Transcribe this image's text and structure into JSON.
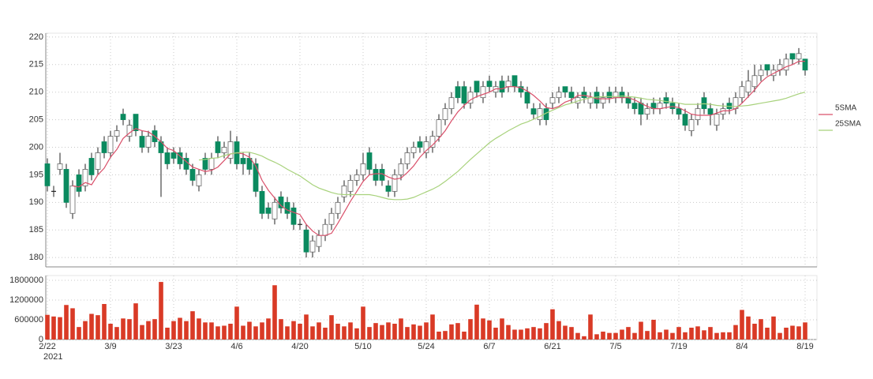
{
  "chart_data": {
    "type": "candlestick",
    "year": "2021",
    "categories": [
      "2/22",
      null,
      null,
      null,
      null,
      null,
      null,
      null,
      null,
      null,
      "3/9",
      null,
      null,
      null,
      null,
      null,
      null,
      null,
      null,
      null,
      "3/23",
      null,
      null,
      null,
      null,
      null,
      null,
      null,
      null,
      null,
      "4/6",
      null,
      null,
      null,
      null,
      null,
      null,
      null,
      null,
      null,
      "4/20",
      null,
      null,
      null,
      null,
      null,
      null,
      null,
      null,
      null,
      "5/10",
      null,
      null,
      null,
      null,
      null,
      null,
      null,
      null,
      null,
      "5/24",
      null,
      null,
      null,
      null,
      null,
      null,
      null,
      null,
      null,
      "6/7",
      null,
      null,
      null,
      null,
      null,
      null,
      null,
      null,
      null,
      "6/21",
      null,
      null,
      null,
      null,
      null,
      null,
      null,
      null,
      null,
      "7/5",
      null,
      null,
      null,
      null,
      null,
      null,
      null,
      null,
      null,
      "7/19",
      null,
      null,
      null,
      null,
      null,
      null,
      null,
      null,
      null,
      "8/4",
      null,
      null,
      null,
      null,
      null,
      null,
      null,
      null,
      null,
      "8/19"
    ],
    "open": [
      197,
      192,
      196,
      196,
      188,
      195,
      193,
      198,
      196,
      201,
      199,
      202,
      206,
      202,
      206,
      202,
      200,
      203,
      201,
      199,
      199,
      199,
      198,
      196,
      193,
      198,
      196,
      201,
      199,
      198,
      201,
      198,
      198,
      197,
      192,
      189,
      187,
      191,
      190,
      189,
      186,
      185,
      181,
      182,
      184,
      186,
      188,
      191,
      192,
      194,
      195,
      199,
      196,
      196,
      193,
      192,
      195,
      197,
      199,
      201,
      199,
      200,
      202,
      205,
      207,
      211,
      211,
      208,
      212,
      209,
      212,
      210,
      212,
      211,
      213,
      211,
      210,
      207,
      205,
      207,
      208,
      209,
      211,
      210,
      208,
      210,
      208,
      210,
      208,
      210,
      209,
      210,
      209,
      208,
      208,
      206,
      208,
      207,
      209,
      208,
      207,
      206,
      203,
      205,
      209,
      207,
      204,
      206,
      208,
      207,
      209,
      210,
      211,
      213,
      215,
      213,
      214,
      214,
      217,
      216,
      216
    ],
    "high": [
      198,
      193,
      199,
      197,
      194,
      196,
      197,
      199,
      200,
      202,
      203,
      204,
      207,
      205,
      206,
      203,
      203,
      204,
      202,
      200,
      200,
      200,
      199,
      197,
      196,
      199,
      199,
      202,
      201,
      203,
      202,
      199,
      199,
      198,
      193,
      190,
      191,
      192,
      191,
      190,
      187,
      186,
      184,
      185,
      187,
      189,
      191,
      194,
      195,
      196,
      199,
      200,
      197,
      197,
      194,
      196,
      198,
      200,
      201,
      202,
      202,
      203,
      206,
      208,
      210,
      212,
      212,
      211,
      212,
      212,
      213,
      212,
      213,
      213,
      213,
      212,
      211,
      208,
      208,
      208,
      210,
      211,
      211,
      211,
      210,
      211,
      210,
      211,
      210,
      211,
      211,
      211,
      210,
      209,
      209,
      208,
      209,
      209,
      210,
      209,
      208,
      207,
      206,
      208,
      210,
      208,
      207,
      208,
      209,
      210,
      212,
      214,
      215,
      215,
      215,
      215,
      216,
      217,
      217,
      218,
      216
    ],
    "low": [
      192,
      191,
      195,
      189,
      187,
      191,
      192,
      194,
      195,
      198,
      198,
      201,
      204,
      201,
      202,
      199,
      199,
      200,
      191,
      196,
      197,
      196,
      195,
      193,
      192,
      195,
      195,
      198,
      198,
      197,
      196,
      195,
      195,
      191,
      187,
      187,
      186,
      188,
      187,
      185,
      185,
      180,
      180,
      181,
      183,
      185,
      187,
      190,
      191,
      193,
      194,
      195,
      193,
      193,
      191,
      191,
      194,
      196,
      198,
      199,
      198,
      199,
      201,
      204,
      206,
      208,
      207,
      207,
      209,
      208,
      210,
      209,
      209,
      210,
      210,
      209,
      207,
      205,
      204,
      204,
      207,
      208,
      209,
      208,
      207,
      208,
      207,
      207,
      207,
      208,
      208,
      208,
      207,
      206,
      204,
      205,
      206,
      206,
      207,
      206,
      205,
      203,
      202,
      204,
      206,
      204,
      203,
      205,
      206,
      206,
      208,
      209,
      210,
      212,
      213,
      212,
      213,
      213,
      215,
      215,
      213
    ],
    "close": [
      193,
      192,
      197,
      190,
      193,
      192,
      196,
      195,
      199,
      199,
      202,
      203,
      205,
      204,
      203,
      200,
      202,
      201,
      199,
      197,
      198,
      197,
      196,
      194,
      195,
      196,
      198,
      199,
      200,
      201,
      197,
      197,
      196,
      192,
      188,
      188,
      190,
      189,
      188,
      186,
      186,
      181,
      183,
      184,
      186,
      188,
      190,
      193,
      194,
      195,
      197,
      196,
      194,
      194,
      192,
      195,
      197,
      199,
      200,
      200,
      201,
      202,
      205,
      207,
      209,
      209,
      208,
      210,
      210,
      211,
      211,
      211,
      210,
      212,
      211,
      210,
      208,
      206,
      207,
      205,
      209,
      210,
      210,
      209,
      209,
      209,
      209,
      208,
      209,
      209,
      210,
      209,
      208,
      207,
      206,
      207,
      207,
      208,
      208,
      207,
      206,
      204,
      205,
      207,
      207,
      206,
      206,
      207,
      207,
      209,
      211,
      212,
      213,
      214,
      214,
      214,
      215,
      216,
      216,
      217,
      214
    ],
    "up_color": "#ffffff",
    "down_color": "#0b8a5f",
    "series": [
      {
        "name": "5SMA",
        "color": "#d9506a",
        "values": [
          null,
          null,
          null,
          null,
          193,
          192.8,
          193.6,
          193.2,
          195,
          196.2,
          198.2,
          199.6,
          201.6,
          202.6,
          203.4,
          203,
          202.8,
          202,
          201,
          199.8,
          199.4,
          198.4,
          197.4,
          196.4,
          196,
          195.6,
          195.8,
          196.4,
          197.6,
          198.8,
          199,
          198.8,
          198.2,
          196.6,
          194,
          192.2,
          190.8,
          189.4,
          188.6,
          188.2,
          187.8,
          186,
          184.8,
          184,
          184,
          184.4,
          186.2,
          188.2,
          190.2,
          192,
          193.8,
          195,
          195.2,
          195.2,
          194.6,
          194.2,
          194.4,
          195.4,
          196.6,
          198.2,
          199.4,
          200.4,
          201.6,
          203,
          204.8,
          206.4,
          207.6,
          208.6,
          209.2,
          209.6,
          210,
          210.6,
          210.6,
          211,
          211,
          210.8,
          210.2,
          209.4,
          208.4,
          207.2,
          207,
          207.4,
          208.2,
          208.6,
          209.4,
          209.4,
          209.2,
          208.8,
          208.8,
          208.8,
          209,
          209,
          209,
          208.6,
          208,
          207.4,
          207,
          207,
          207.2,
          207.4,
          207.2,
          206.6,
          206,
          205.8,
          205.8,
          205.8,
          206.2,
          206.6,
          206.6,
          207,
          208,
          209.2,
          210.4,
          211.8,
          212.8,
          213.4,
          214,
          214.6,
          215,
          215.6,
          215.6
        ]
      },
      {
        "name": "25SMA",
        "color": "#a8d27c",
        "values": [
          null,
          null,
          null,
          null,
          null,
          null,
          null,
          null,
          null,
          null,
          null,
          null,
          null,
          null,
          null,
          null,
          null,
          null,
          null,
          null,
          null,
          null,
          null,
          null,
          197.7,
          197.8,
          198,
          198.1,
          198.5,
          198.8,
          199,
          199.1,
          199.1,
          198.8,
          198.4,
          197.8,
          197.3,
          196.7,
          196,
          195.4,
          194.8,
          194,
          193.2,
          192.6,
          192.2,
          191.8,
          191.5,
          191.4,
          191.4,
          191.4,
          191.4,
          191.4,
          191.2,
          190.9,
          190.6,
          190.5,
          190.5,
          190.6,
          190.9,
          191.4,
          191.9,
          192.4,
          193,
          193.8,
          194.7,
          195.6,
          196.7,
          197.8,
          198.8,
          199.8,
          200.8,
          201.6,
          202.3,
          203,
          203.6,
          204.2,
          204.6,
          205.1,
          205.6,
          206.2,
          206.7,
          207.2,
          207.7,
          208,
          208.4,
          208.7,
          209,
          209.1,
          209.2,
          209.2,
          209.2,
          209.3,
          209.2,
          209.1,
          208.9,
          208.7,
          208.6,
          208.5,
          208.3,
          208.2,
          208,
          207.8,
          207.8,
          207.8,
          207.9,
          207.8,
          207.6,
          207.5,
          207.4,
          207.4,
          207.5,
          207.6,
          207.8,
          208,
          208.2,
          208.4,
          208.6,
          208.9,
          209.3,
          209.7,
          210
        ]
      }
    ],
    "ylim": [
      178.3,
      220.7
    ],
    "yticks": [
      180,
      185,
      190,
      195,
      200,
      205,
      210,
      215,
      220
    ],
    "grid": true,
    "legend": "right",
    "volume": {
      "color": "#d93a26",
      "values": [
        750000,
        700000,
        680000,
        1050000,
        950000,
        380000,
        560000,
        780000,
        740000,
        1080000,
        480000,
        380000,
        640000,
        620000,
        1100000,
        440000,
        560000,
        620000,
        1750000,
        360000,
        560000,
        660000,
        560000,
        860000,
        640000,
        520000,
        520000,
        400000,
        420000,
        480000,
        1000000,
        420000,
        540000,
        400000,
        520000,
        640000,
        1650000,
        620000,
        400000,
        560000,
        480000,
        760000,
        400000,
        520000,
        360000,
        740000,
        480000,
        400000,
        520000,
        340000,
        1000000,
        380000,
        500000,
        440000,
        520000,
        480000,
        640000,
        380000,
        460000,
        420000,
        520000,
        760000,
        240000,
        260000,
        460000,
        500000,
        240000,
        620000,
        1060000,
        640000,
        580000,
        360000,
        640000,
        440000,
        300000,
        300000,
        340000,
        380000,
        340000,
        500000,
        920000,
        560000,
        420000,
        380000,
        200000,
        100000,
        760000,
        160000,
        240000,
        200000,
        200000,
        300000,
        380000,
        200000,
        540000,
        260000,
        600000,
        220000,
        300000,
        200000,
        380000,
        220000,
        360000,
        400000,
        280000,
        380000,
        200000,
        220000,
        220000,
        440000,
        900000,
        700000,
        480000,
        620000,
        360000,
        700000,
        200000,
        360000,
        420000,
        400000,
        520000
      ],
      "ylim": [
        0,
        1944000
      ],
      "yticks": [
        0,
        600000,
        1200000,
        1800000
      ]
    }
  }
}
